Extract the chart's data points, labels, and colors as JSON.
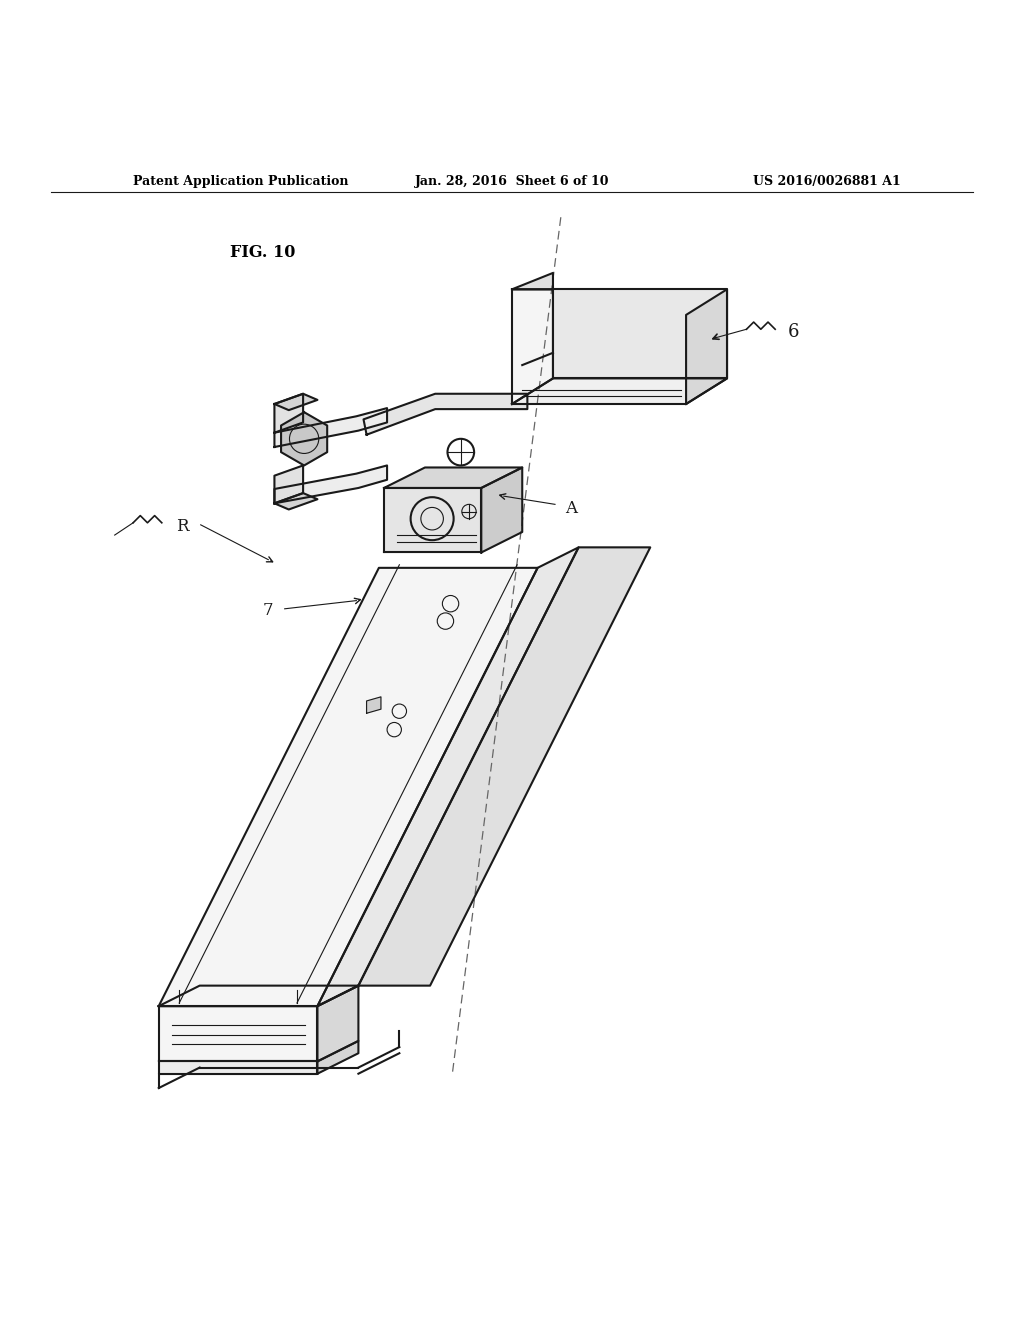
{
  "bg_color": "#ffffff",
  "line_color": "#1a1a1a",
  "header_left": "Patent Application Publication",
  "header_center": "Jan. 28, 2016  Sheet 6 of 10",
  "header_right": "US 2016/0026881 A1",
  "fig_label": "FIG. 10",
  "dpi": 100,
  "figsize": [
    10.24,
    13.2
  ]
}
